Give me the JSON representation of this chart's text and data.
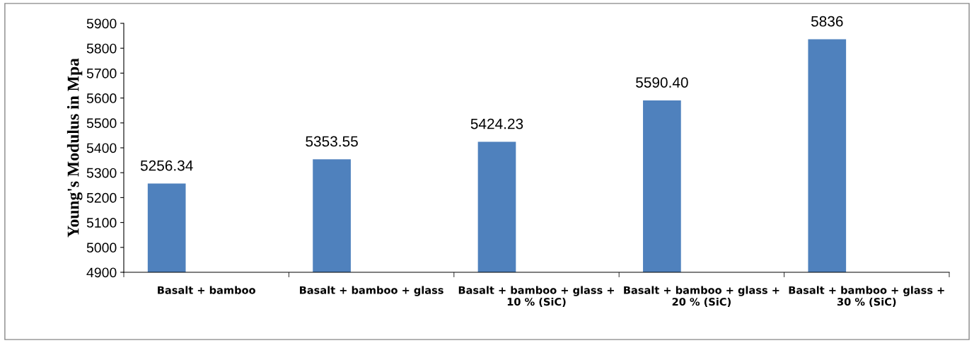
{
  "chart_data": {
    "type": "bar",
    "ylabel": "Young's Modulus in Mpa",
    "categories": [
      "Basalt + bamboo",
      "Basalt + bamboo + glass",
      "Basalt + bamboo + glass +\n10 % (SiC)",
      "Basalt + bamboo + glass +\n20 % (SiC)",
      "Basalt + bamboo + glass +\n30 % (SiC)"
    ],
    "values": [
      5256.34,
      5353.55,
      5424.23,
      5590.4,
      5836
    ],
    "value_labels": [
      "5256.34",
      "5353.55",
      "5424.23",
      "5590.40",
      "5836"
    ],
    "color": "#4f81bd",
    "ylim": [
      4900,
      5900
    ],
    "yticks": [
      4900,
      5000,
      5100,
      5200,
      5300,
      5400,
      5500,
      5600,
      5700,
      5800,
      5900
    ],
    "grid": false,
    "legend": false
  }
}
